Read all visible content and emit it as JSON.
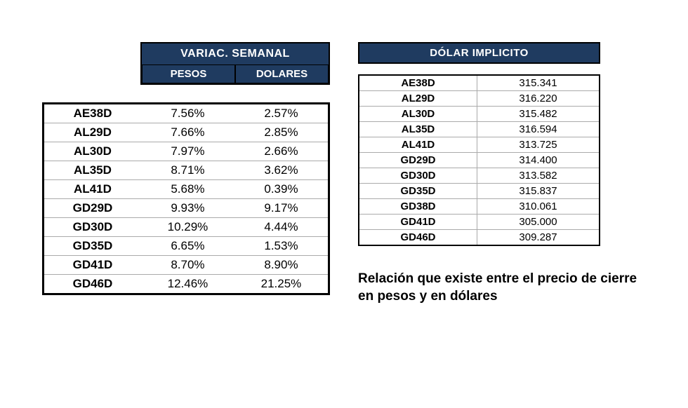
{
  "variac": {
    "title": "VARIAC. SEMANAL",
    "sub_pesos": "PESOS",
    "sub_dolares": "DOLARES",
    "header_bg": "#1f3b60",
    "header_fg": "#ffffff",
    "border_color": "#000000",
    "rows": [
      {
        "ticker": "AE38D",
        "pesos": "7.56%",
        "dolares": "2.57%"
      },
      {
        "ticker": "AL29D",
        "pesos": "7.66%",
        "dolares": "2.85%"
      },
      {
        "ticker": "AL30D",
        "pesos": "7.97%",
        "dolares": "2.66%"
      },
      {
        "ticker": "AL35D",
        "pesos": "8.71%",
        "dolares": "3.62%"
      },
      {
        "ticker": "AL41D",
        "pesos": "5.68%",
        "dolares": "0.39%"
      },
      {
        "ticker": "GD29D",
        "pesos": "9.93%",
        "dolares": "9.17%"
      },
      {
        "ticker": "GD30D",
        "pesos": "10.29%",
        "dolares": "4.44%"
      },
      {
        "ticker": "GD35D",
        "pesos": "6.65%",
        "dolares": "1.53%"
      },
      {
        "ticker": "GD41D",
        "pesos": "8.70%",
        "dolares": "8.90%"
      },
      {
        "ticker": "GD46D",
        "pesos": "12.46%",
        "dolares": "21.25%"
      }
    ]
  },
  "dolar": {
    "title": "DÓLAR IMPLICITO",
    "header_bg": "#1f3b60",
    "header_fg": "#ffffff",
    "border_color": "#000000",
    "rows": [
      {
        "ticker": "AE38D",
        "value": "315.341"
      },
      {
        "ticker": "AL29D",
        "value": "316.220"
      },
      {
        "ticker": "AL30D",
        "value": "315.482"
      },
      {
        "ticker": "AL35D",
        "value": "316.594"
      },
      {
        "ticker": "AL41D",
        "value": "313.725"
      },
      {
        "ticker": "GD29D",
        "value": "314.400"
      },
      {
        "ticker": "GD30D",
        "value": "313.582"
      },
      {
        "ticker": "GD35D",
        "value": "315.837"
      },
      {
        "ticker": "GD38D",
        "value": "310.061"
      },
      {
        "ticker": "GD41D",
        "value": "305.000"
      },
      {
        "ticker": "GD46D",
        "value": "309.287"
      }
    ]
  },
  "caption": "Relación que existe entre el precio de cierre en pesos y en dólares"
}
